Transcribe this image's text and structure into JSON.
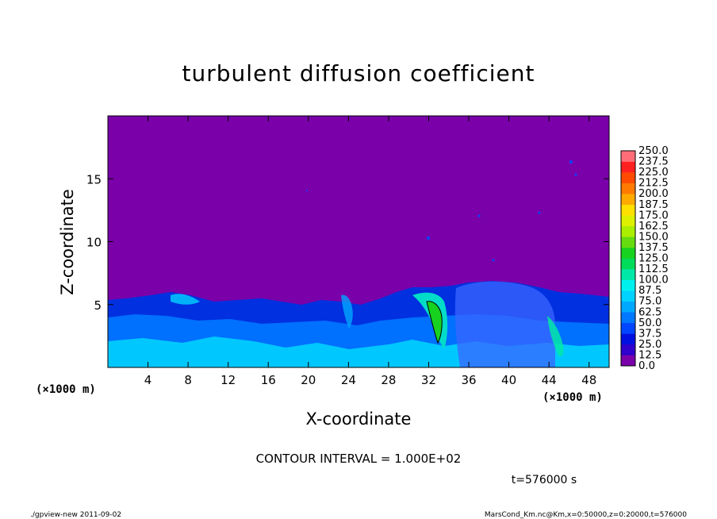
{
  "chart_data": {
    "type": "heatmap",
    "title": "turbulent diffusion coefficient",
    "xlabel": "X-coordinate",
    "ylabel": "Z-coordinate",
    "x_unit": "(×1000 m)",
    "y_unit": "(×1000 m)",
    "xlim": [
      0,
      50
    ],
    "ylim": [
      0,
      20
    ],
    "x_ticks": [
      4,
      8,
      12,
      16,
      20,
      24,
      28,
      32,
      36,
      40,
      44,
      48
    ],
    "y_ticks": [
      5,
      10,
      15
    ],
    "colorbar_levels": [
      "0.0",
      "12.5",
      "25.0",
      "37.5",
      "50.0",
      "62.5",
      "75.0",
      "87.5",
      "100.0",
      "112.5",
      "125.0",
      "137.5",
      "150.0",
      "162.5",
      "175.0",
      "187.5",
      "200.0",
      "212.5",
      "225.0",
      "237.5",
      "250.0"
    ],
    "colorbar_colors": [
      "#7a00aa",
      "#3000cc",
      "#0010e0",
      "#0046ff",
      "#0078ff",
      "#00a8ff",
      "#00d2ff",
      "#00f0f0",
      "#00e8a8",
      "#00dc5a",
      "#18d220",
      "#66dc10",
      "#aaee00",
      "#dcf000",
      "#ffe000",
      "#ffaa00",
      "#ff7a00",
      "#ff4a00",
      "#ff2020",
      "#ff6e78"
    ],
    "background_value": "0.0",
    "contour_interval": "CONTOUR INTERVAL = 1.000E+02",
    "time_label": "t=576000 s"
  },
  "footer": {
    "left": "./gpview-new   2011-09-02",
    "right": "MarsCond_Km.nc@Km,x=0:50000,z=0:20000,t=576000"
  }
}
